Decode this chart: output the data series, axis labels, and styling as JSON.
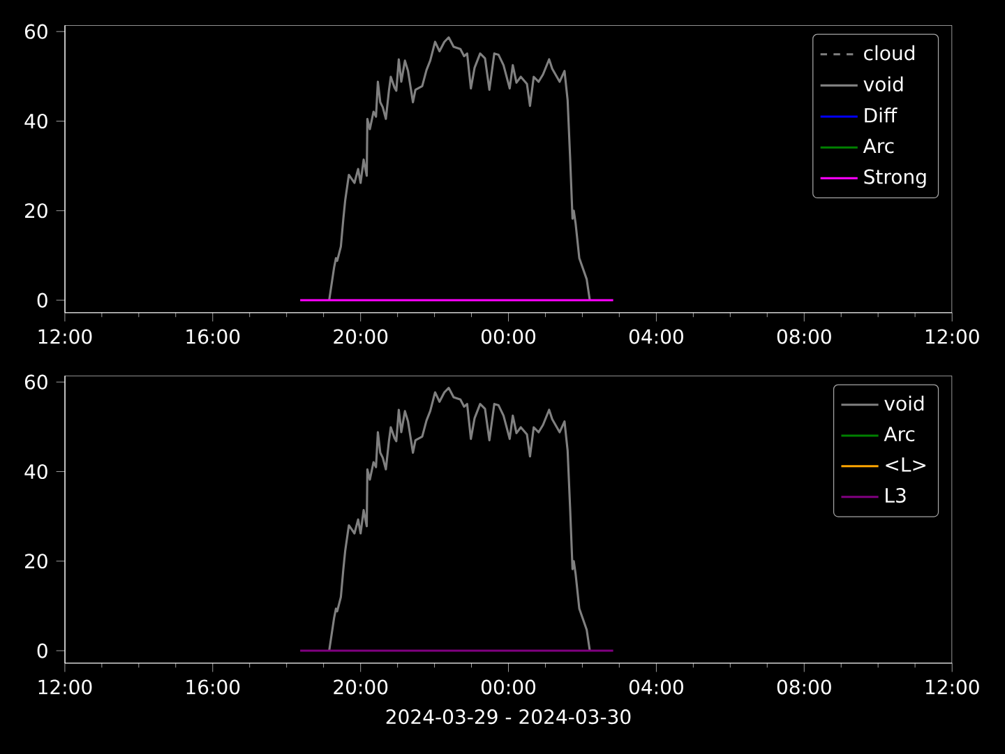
{
  "chart_data": [
    {
      "type": "line",
      "legend": "top right",
      "xlim": [
        "2024-03-29T12:00",
        "2024-03-30T12:00"
      ],
      "ylim": [
        -2.8,
        61.4
      ],
      "xticks": [
        {
          "value": "2024-03-29T12:00",
          "label": "12:00"
        },
        {
          "value": "2024-03-29T16:00",
          "label": "16:00"
        },
        {
          "value": "2024-03-29T20:00",
          "label": "20:00"
        },
        {
          "value": "2024-03-30T00:00",
          "label": "00:00"
        },
        {
          "value": "2024-03-30T04:00",
          "label": "04:00"
        },
        {
          "value": "2024-03-30T08:00",
          "label": "08:00"
        },
        {
          "value": "2024-03-30T12:00",
          "label": "12:00"
        }
      ],
      "yticks": [
        0,
        20,
        40,
        60
      ],
      "series": [
        {
          "name": "cloud",
          "color": "#808080",
          "line_style": "dashed"
        },
        {
          "name": "void",
          "color": "#808080",
          "x": [
            "2024-03-29T19:09",
            "2024-03-29T19:17",
            "2024-03-29T19:20",
            "2024-03-29T19:22",
            "2024-03-29T19:28",
            "2024-03-29T19:32",
            "2024-03-29T19:35",
            "2024-03-29T19:41",
            "2024-03-29T19:50",
            "2024-03-29T19:56",
            "2024-03-29T20:00",
            "2024-03-29T20:05",
            "2024-03-29T20:10",
            "2024-03-29T20:11",
            "2024-03-29T20:15",
            "2024-03-29T20:21",
            "2024-03-29T20:25",
            "2024-03-29T20:28",
            "2024-03-29T20:32",
            "2024-03-29T20:36",
            "2024-03-29T20:41",
            "2024-03-29T20:46",
            "2024-03-29T20:49",
            "2024-03-29T20:55",
            "2024-03-29T20:58",
            "2024-03-29T21:02",
            "2024-03-29T21:06",
            "2024-03-29T21:12",
            "2024-03-29T21:17",
            "2024-03-29T21:25",
            "2024-03-29T21:29",
            "2024-03-29T21:40",
            "2024-03-29T21:47",
            "2024-03-29T21:53",
            "2024-03-29T22:01",
            "2024-03-29T22:08",
            "2024-03-29T22:16",
            "2024-03-29T22:23",
            "2024-03-29T22:31",
            "2024-03-29T22:42",
            "2024-03-29T22:48",
            "2024-03-29T22:53",
            "2024-03-29T22:59",
            "2024-03-29T23:05",
            "2024-03-29T23:14",
            "2024-03-29T23:22",
            "2024-03-29T23:29",
            "2024-03-29T23:37",
            "2024-03-29T23:44",
            "2024-03-29T23:52",
            "2024-03-30T00:02",
            "2024-03-30T00:07",
            "2024-03-30T00:13",
            "2024-03-30T00:20",
            "2024-03-30T00:30",
            "2024-03-30T00:35",
            "2024-03-30T00:41",
            "2024-03-30T00:49",
            "2024-03-30T00:56",
            "2024-03-30T01:06",
            "2024-03-30T01:11",
            "2024-03-30T01:23",
            "2024-03-30T01:31",
            "2024-03-30T01:36",
            "2024-03-30T01:40",
            "2024-03-30T01:44",
            "2024-03-30T01:46",
            "2024-03-30T01:49",
            "2024-03-30T01:55",
            "2024-03-30T02:07",
            "2024-03-30T02:12"
          ],
          "values": [
            0,
            7.3,
            9.4,
            8.8,
            12,
            18.2,
            22.3,
            28.0,
            26.2,
            29.3,
            26.2,
            31.4,
            27.8,
            40.5,
            38.2,
            42.1,
            41.0,
            48.8,
            44.2,
            43.1,
            40.5,
            46.8,
            49.9,
            47.5,
            46.8,
            53.8,
            48.8,
            53.5,
            51.2,
            44.2,
            47.0,
            47.8,
            51.4,
            53.5,
            57.7,
            55.6,
            57.7,
            58.7,
            56.6,
            56.1,
            54.5,
            55.1,
            47.3,
            51.9,
            55.1,
            54.0,
            47.0,
            55.1,
            54.8,
            52.5,
            47.3,
            52.5,
            48.6,
            49.9,
            48.3,
            43.4,
            49.9,
            48.8,
            50.4,
            53.8,
            51.7,
            48.8,
            51.2,
            44.7,
            32.2,
            18.2,
            20.0,
            17.1,
            9.4,
            4.7,
            0
          ]
        },
        {
          "name": "Diff",
          "color": "#0000ff"
        },
        {
          "name": "Arc",
          "color": "#008000"
        },
        {
          "name": "Strong",
          "color": "#ff00ff",
          "x": [
            "2024-03-29T18:22",
            "2024-03-30T02:50"
          ],
          "values": [
            0,
            0
          ]
        }
      ]
    },
    {
      "type": "line",
      "legend": "top right",
      "xlim": [
        "2024-03-29T12:00",
        "2024-03-30T12:00"
      ],
      "ylim": [
        -2.8,
        61.4
      ],
      "xlabel": "2024-03-29 - 2024-03-30",
      "xticks": [
        {
          "value": "2024-03-29T12:00",
          "label": "12:00"
        },
        {
          "value": "2024-03-29T16:00",
          "label": "16:00"
        },
        {
          "value": "2024-03-29T20:00",
          "label": "20:00"
        },
        {
          "value": "2024-03-30T00:00",
          "label": "00:00"
        },
        {
          "value": "2024-03-30T04:00",
          "label": "04:00"
        },
        {
          "value": "2024-03-30T08:00",
          "label": "08:00"
        },
        {
          "value": "2024-03-30T12:00",
          "label": "12:00"
        }
      ],
      "yticks": [
        0,
        20,
        40,
        60
      ],
      "series": [
        {
          "name": "void",
          "color": "#808080",
          "x": [
            "2024-03-29T19:09",
            "2024-03-29T19:17",
            "2024-03-29T19:20",
            "2024-03-29T19:22",
            "2024-03-29T19:28",
            "2024-03-29T19:32",
            "2024-03-29T19:35",
            "2024-03-29T19:41",
            "2024-03-29T19:50",
            "2024-03-29T19:56",
            "2024-03-29T20:00",
            "2024-03-29T20:05",
            "2024-03-29T20:10",
            "2024-03-29T20:11",
            "2024-03-29T20:15",
            "2024-03-29T20:21",
            "2024-03-29T20:25",
            "2024-03-29T20:28",
            "2024-03-29T20:32",
            "2024-03-29T20:36",
            "2024-03-29T20:41",
            "2024-03-29T20:46",
            "2024-03-29T20:49",
            "2024-03-29T20:55",
            "2024-03-29T20:58",
            "2024-03-29T21:02",
            "2024-03-29T21:06",
            "2024-03-29T21:12",
            "2024-03-29T21:17",
            "2024-03-29T21:25",
            "2024-03-29T21:29",
            "2024-03-29T21:40",
            "2024-03-29T21:47",
            "2024-03-29T21:53",
            "2024-03-29T22:01",
            "2024-03-29T22:08",
            "2024-03-29T22:16",
            "2024-03-29T22:23",
            "2024-03-29T22:31",
            "2024-03-29T22:42",
            "2024-03-29T22:48",
            "2024-03-29T22:53",
            "2024-03-29T22:59",
            "2024-03-29T23:05",
            "2024-03-29T23:14",
            "2024-03-29T23:22",
            "2024-03-29T23:29",
            "2024-03-29T23:37",
            "2024-03-29T23:44",
            "2024-03-29T23:52",
            "2024-03-30T00:02",
            "2024-03-30T00:07",
            "2024-03-30T00:13",
            "2024-03-30T00:20",
            "2024-03-30T00:30",
            "2024-03-30T00:35",
            "2024-03-30T00:41",
            "2024-03-30T00:49",
            "2024-03-30T00:56",
            "2024-03-30T01:06",
            "2024-03-30T01:11",
            "2024-03-30T01:23",
            "2024-03-30T01:31",
            "2024-03-30T01:36",
            "2024-03-30T01:40",
            "2024-03-30T01:44",
            "2024-03-30T01:46",
            "2024-03-30T01:49",
            "2024-03-30T01:55",
            "2024-03-30T02:07",
            "2024-03-30T02:12"
          ],
          "values": [
            0,
            7.3,
            9.4,
            8.8,
            12,
            18.2,
            22.3,
            28.0,
            26.2,
            29.3,
            26.2,
            31.4,
            27.8,
            40.5,
            38.2,
            42.1,
            41.0,
            48.8,
            44.2,
            43.1,
            40.5,
            46.8,
            49.9,
            47.5,
            46.8,
            53.8,
            48.8,
            53.5,
            51.2,
            44.2,
            47.0,
            47.8,
            51.4,
            53.5,
            57.7,
            55.6,
            57.7,
            58.7,
            56.6,
            56.1,
            54.5,
            55.1,
            47.3,
            51.9,
            55.1,
            54.0,
            47.0,
            55.1,
            54.8,
            52.5,
            47.3,
            52.5,
            48.6,
            49.9,
            48.3,
            43.4,
            49.9,
            48.8,
            50.4,
            53.8,
            51.7,
            48.8,
            51.2,
            44.7,
            32.2,
            18.2,
            20.0,
            17.1,
            9.4,
            4.7,
            0
          ]
        },
        {
          "name": "Arc",
          "color": "#008000"
        },
        {
          "name": "<L>",
          "color": "#ffa500"
        },
        {
          "name": "L3",
          "color": "#800080",
          "x": [
            "2024-03-29T18:22",
            "2024-03-30T02:50"
          ],
          "values": [
            0,
            0
          ]
        }
      ]
    }
  ]
}
